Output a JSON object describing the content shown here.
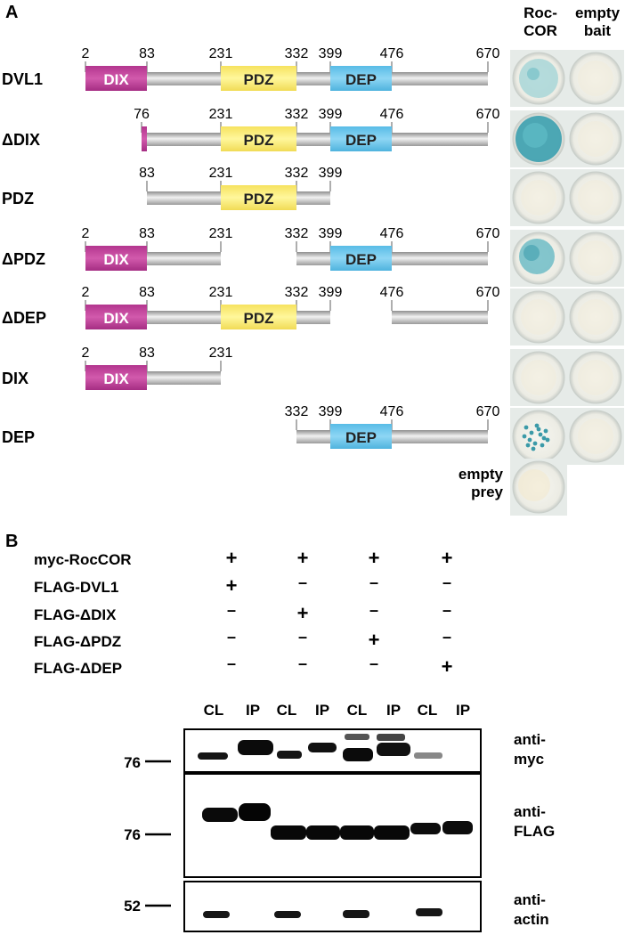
{
  "panel_a": {
    "label": "A",
    "col_headers": [
      [
        "Roc-",
        "COR"
      ],
      [
        "empty",
        "bait"
      ]
    ],
    "constructs": [
      {
        "name": "DVL1",
        "positions": [
          "2",
          "83",
          "231",
          "332",
          "399",
          "476",
          "670"
        ],
        "roccor": "weak blue",
        "empty_bait": "white"
      },
      {
        "name": "ΔDIX",
        "positions": [
          "76",
          "231",
          "332",
          "399",
          "476",
          "670"
        ],
        "roccor": "strong blue",
        "empty_bait": "white"
      },
      {
        "name": "PDZ",
        "positions": [
          "83",
          "231",
          "332",
          "399"
        ],
        "roccor": "white",
        "empty_bait": "white"
      },
      {
        "name": "ΔPDZ",
        "positions": [
          "2",
          "83",
          "231",
          "332",
          "399",
          "476",
          "670"
        ],
        "roccor": "blue",
        "empty_bait": "white"
      },
      {
        "name": "ΔDEP",
        "positions": [
          "2",
          "83",
          "231",
          "332",
          "399",
          "476",
          "670"
        ],
        "roccor": "white",
        "empty_bait": "white"
      },
      {
        "name": "DIX",
        "positions": [
          "2",
          "83",
          "231"
        ],
        "roccor": "white",
        "empty_bait": "white"
      },
      {
        "name": "DEP",
        "positions": [
          "332",
          "399",
          "476",
          "670"
        ],
        "roccor": "speckled blue",
        "empty_bait": "white"
      }
    ],
    "domains": {
      "dix": "DIX",
      "pdz": "PDZ",
      "dep": "DEP"
    },
    "domain_colors": {
      "dix": "#c0409a",
      "pdz": "#fff27a",
      "dep": "#6cc6ee"
    },
    "empty_prey": [
      "empty",
      "prey"
    ]
  },
  "panel_b": {
    "label": "B",
    "rows": [
      {
        "name": "myc-RocCOR",
        "marks": [
          "+",
          "+",
          "+",
          "+"
        ]
      },
      {
        "name": "FLAG-DVL1",
        "marks": [
          "+",
          "–",
          "–",
          "–"
        ]
      },
      {
        "name": "FLAG-ΔDIX",
        "marks": [
          "–",
          "+",
          "–",
          "–"
        ]
      },
      {
        "name": "FLAG-ΔPDZ",
        "marks": [
          "–",
          "–",
          "+",
          "–"
        ]
      },
      {
        "name": "FLAG-ΔDEP",
        "marks": [
          "–",
          "–",
          "–",
          "+"
        ]
      }
    ],
    "lanes": [
      "CL",
      "IP",
      "CL",
      "IP",
      "CL",
      "IP",
      "CL",
      "IP"
    ],
    "blots": [
      {
        "marker": "76",
        "label": [
          "anti-",
          "myc"
        ]
      },
      {
        "marker": "76",
        "label": [
          "anti-",
          "FLAG"
        ]
      },
      {
        "marker": "52",
        "label": [
          "anti-",
          "actin"
        ]
      }
    ]
  }
}
